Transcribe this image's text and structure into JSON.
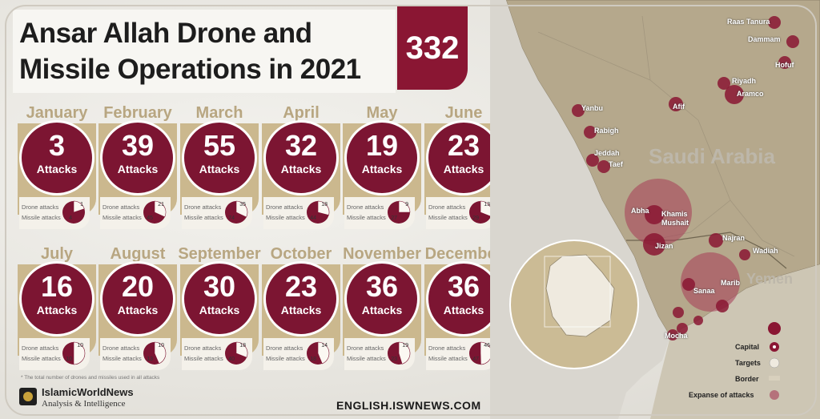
{
  "title": {
    "line1": "Ansar Allah Drone and",
    "line2": "Missile Operations in 2021"
  },
  "total": "332",
  "unit_label": "Attacks",
  "legend_labels": {
    "drone": "Drone attacks",
    "missile": "Missile attacks"
  },
  "months": [
    {
      "name": "January",
      "total": "3",
      "drone": "1",
      "missile": "4"
    },
    {
      "name": "February",
      "total": "39",
      "drone": "21",
      "missile": "45"
    },
    {
      "name": "March",
      "total": "55",
      "drone": "35",
      "missile": "74"
    },
    {
      "name": "April",
      "total": "32",
      "drone": "18",
      "missile": "44"
    },
    {
      "name": "May",
      "total": "19",
      "drone": "9",
      "missile": "27"
    },
    {
      "name": "June",
      "total": "23",
      "drone": "13",
      "missile": "29"
    },
    {
      "name": "July",
      "total": "16",
      "drone": "10",
      "missile": "10"
    },
    {
      "name": "August",
      "total": "20",
      "drone": "10",
      "missile": "13"
    },
    {
      "name": "September",
      "total": "30",
      "drone": "18",
      "missile": "40"
    },
    {
      "name": "October",
      "total": "23",
      "drone": "14",
      "missile": "18"
    },
    {
      "name": "November",
      "total": "36",
      "drone": "19",
      "missile": "23"
    },
    {
      "name": "December",
      "total": "36",
      "drone": "46",
      "missile": "47"
    }
  ],
  "footnote": "* The total number of drones and missiles used in all attacks",
  "brand": {
    "name": "IslamicWorldNews",
    "sub": "Analysis & Intelligence"
  },
  "site": "ENGLISH.ISWNEWS.COM",
  "map": {
    "countries": {
      "saudi": "Saudi Arabia",
      "yemen": "Yemen"
    },
    "cities": [
      "Raas Tanura",
      "Dammam",
      "Hofuf",
      "Riyadh",
      "Aramco",
      "Afif",
      "Yanbu",
      "Rabigh",
      "Jeddah",
      "Taef",
      "Abha",
      "Khamis Mushait",
      "Jizan",
      "Najran",
      "Wadiah",
      "Marib",
      "Sanaa",
      "Mocha"
    ],
    "legend": {
      "capital": "Capital",
      "targets": "Targets",
      "border": "Border",
      "expanse": "Expanse of attacks"
    }
  },
  "colors": {
    "accent": "#7c1532",
    "card": "#cbb88e",
    "month_text": "#b8a681"
  }
}
